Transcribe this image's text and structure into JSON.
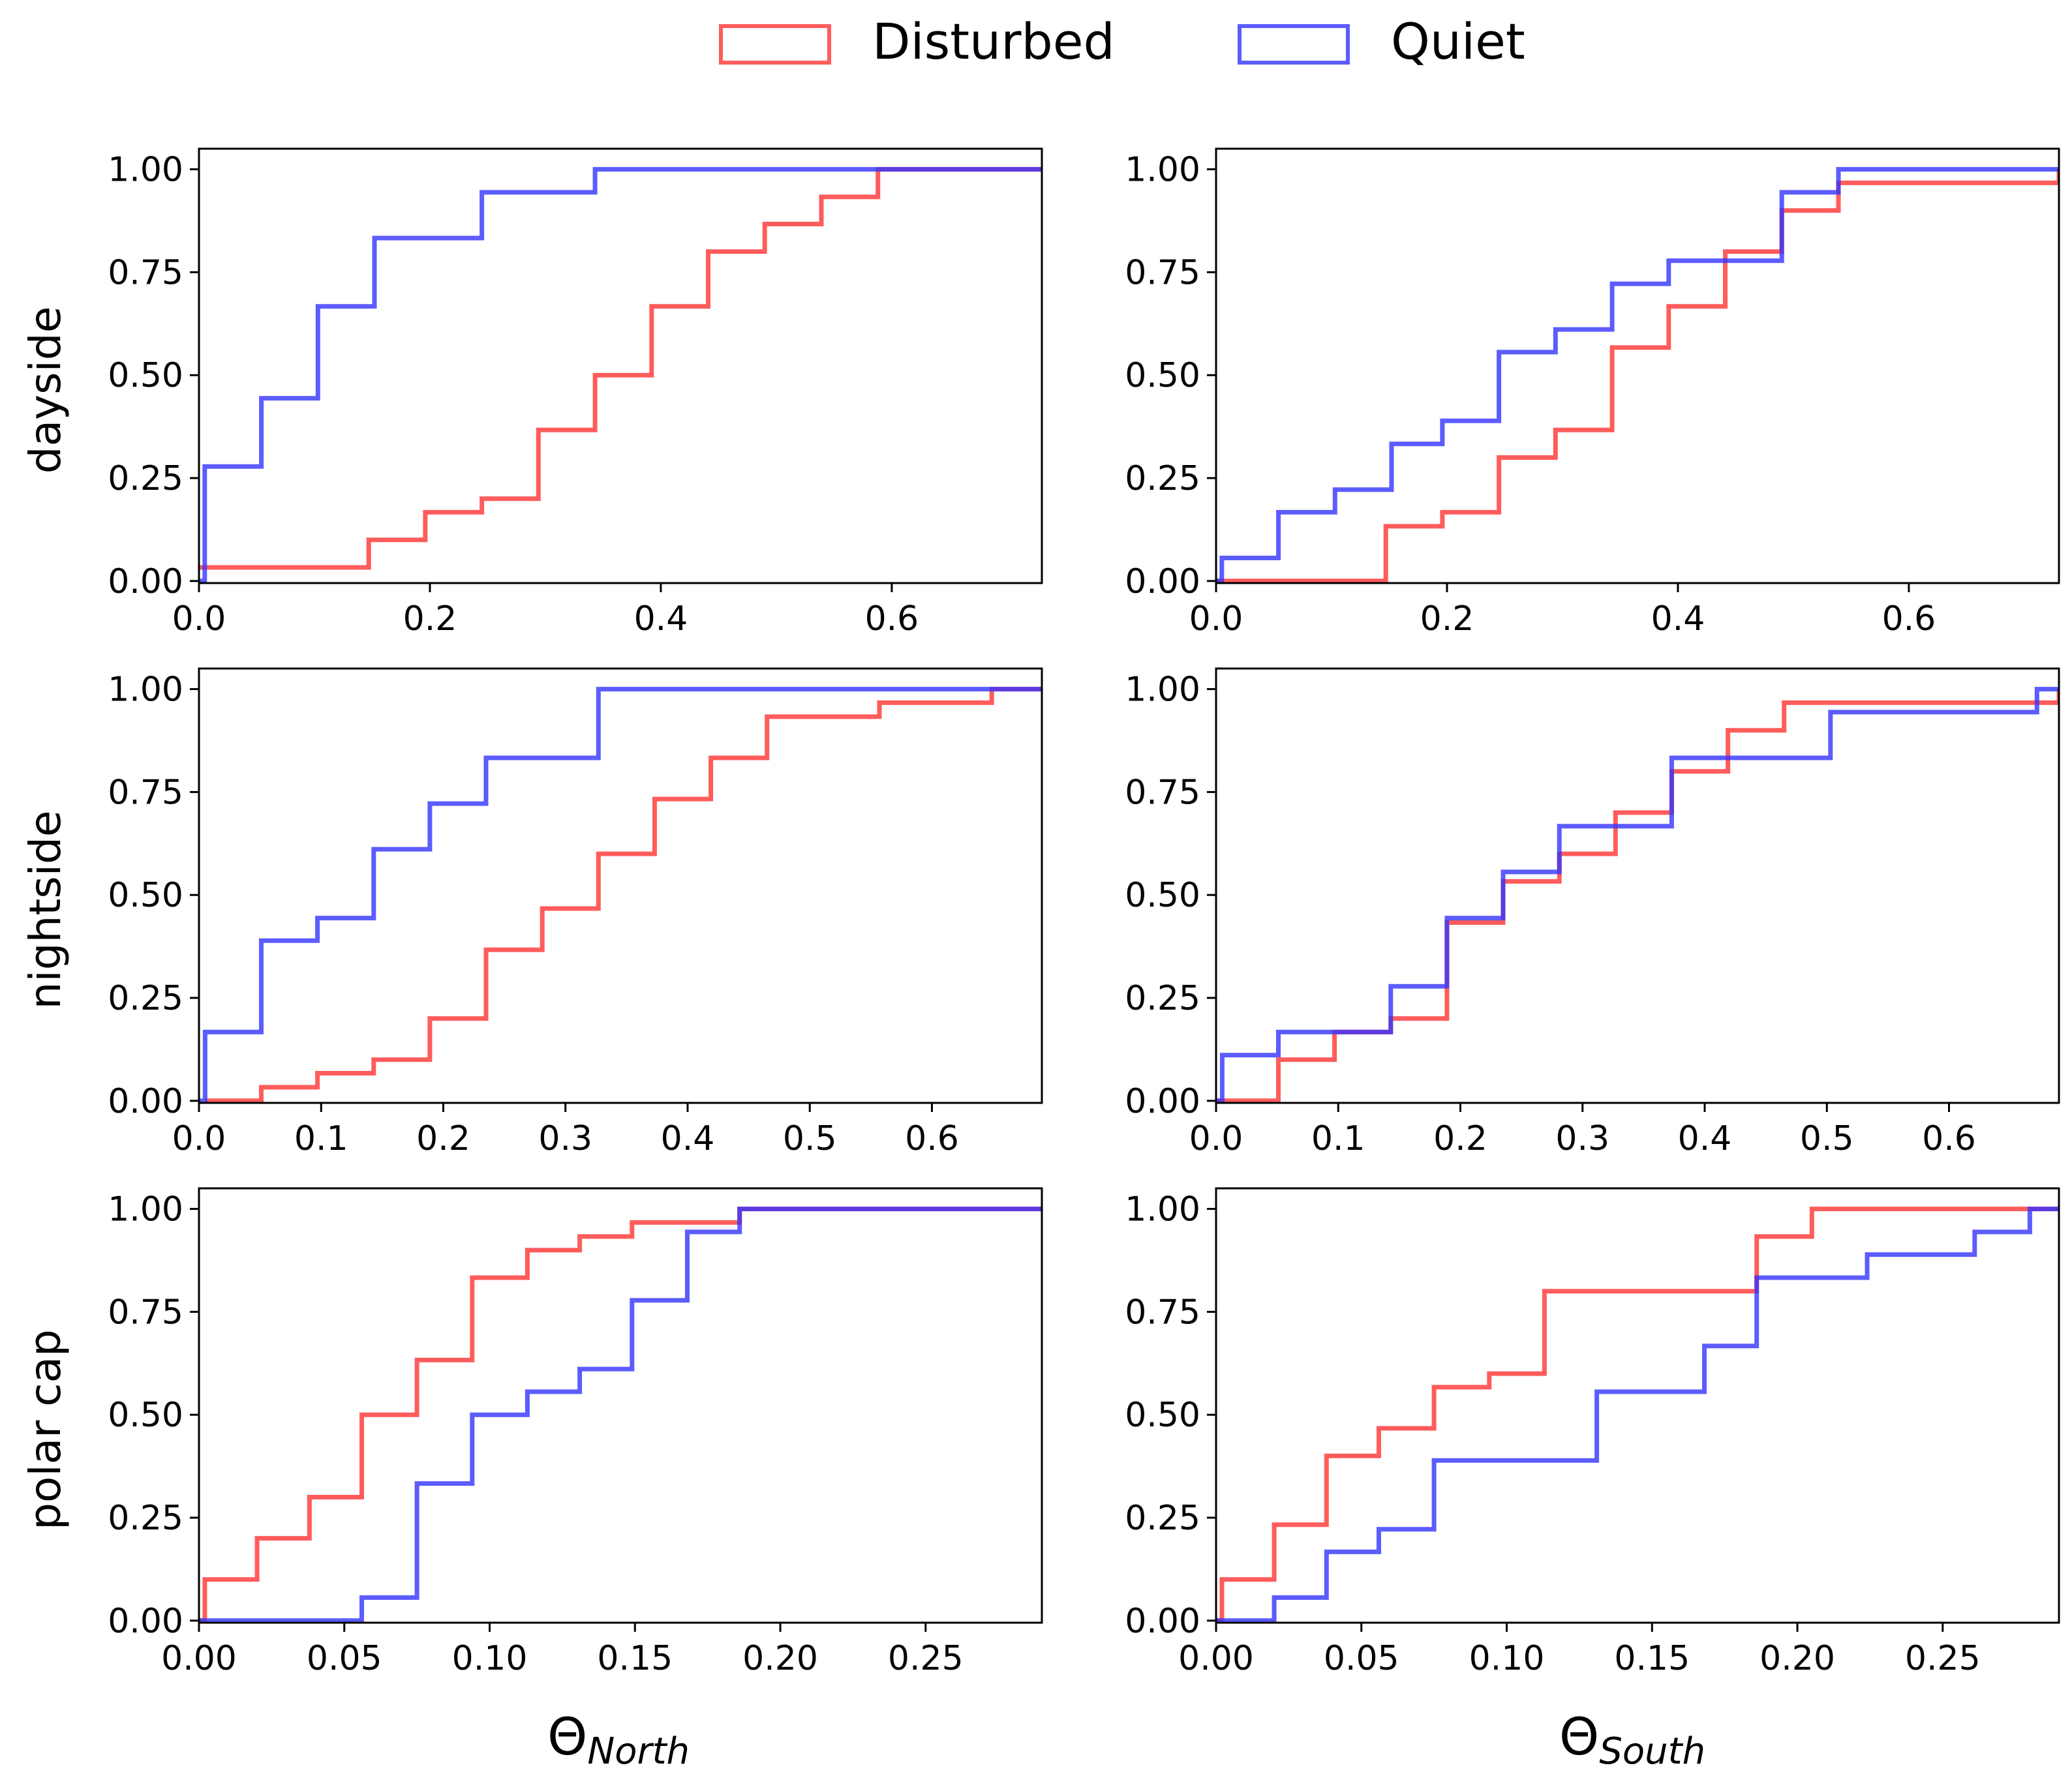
{
  "legend": {
    "placement": "top-center",
    "entries": [
      {
        "label": "Disturbed",
        "color": "#ff3333"
      },
      {
        "label": "Quiet",
        "color": "#3333ff"
      }
    ]
  },
  "row_labels": [
    "dayside",
    "nightside",
    "polar cap"
  ],
  "col_labels": {
    "north_base": "Θ",
    "north_sub": "North",
    "south_base": "Θ",
    "south_sub": "South"
  },
  "chart_data": [
    {
      "type": "line",
      "step": "post",
      "row": 0,
      "col": 0,
      "ylabel": "dayside",
      "xlabel": "",
      "xlim": [
        0,
        0.73
      ],
      "ylim": [
        -0.005,
        1.05
      ],
      "xticks": [
        0.0,
        0.2,
        0.4,
        0.6
      ],
      "xtick_labels": [
        "0.0",
        "0.2",
        "0.4",
        "0.6"
      ],
      "yticks": [
        0,
        0.25,
        0.5,
        0.75,
        1.0
      ],
      "ytick_labels": [
        "0.00",
        "0.25",
        "0.50",
        "0.75",
        "1.00"
      ],
      "series": [
        {
          "name": "Disturbed",
          "x": [
            0.0,
            0.147,
            0.196,
            0.245,
            0.294,
            0.343,
            0.392,
            0.441,
            0.49,
            0.539,
            0.588,
            0.73
          ],
          "y": [
            0.033,
            0.1,
            0.167,
            0.2,
            0.367,
            0.5,
            0.667,
            0.8,
            0.867,
            0.933,
            1.0,
            1.0
          ]
        },
        {
          "name": "Quiet",
          "x": [
            0.0,
            0.005,
            0.054,
            0.103,
            0.152,
            0.245,
            0.343,
            0.73
          ],
          "y": [
            0.0,
            0.278,
            0.444,
            0.667,
            0.833,
            0.944,
            1.0,
            1.0
          ]
        }
      ]
    },
    {
      "type": "line",
      "step": "post",
      "row": 0,
      "col": 1,
      "ylabel": "",
      "xlabel": "",
      "xlim": [
        0,
        0.73
      ],
      "ylim": [
        -0.005,
        1.05
      ],
      "xticks": [
        0.0,
        0.2,
        0.4,
        0.6
      ],
      "xtick_labels": [
        "0.0",
        "0.2",
        "0.4",
        "0.6"
      ],
      "yticks": [
        0,
        0.25,
        0.5,
        0.75,
        1.0
      ],
      "ytick_labels": [
        "0.00",
        "0.25",
        "0.50",
        "0.75",
        "1.00"
      ],
      "series": [
        {
          "name": "Disturbed",
          "x": [
            0.0,
            0.147,
            0.196,
            0.245,
            0.294,
            0.343,
            0.392,
            0.441,
            0.49,
            0.539,
            0.73
          ],
          "y": [
            0.0,
            0.133,
            0.167,
            0.3,
            0.367,
            0.567,
            0.667,
            0.8,
            0.9,
            0.967,
            1.0
          ]
        },
        {
          "name": "Quiet",
          "x": [
            0.0,
            0.005,
            0.054,
            0.103,
            0.152,
            0.196,
            0.245,
            0.294,
            0.343,
            0.392,
            0.49,
            0.539,
            0.73
          ],
          "y": [
            0.0,
            0.056,
            0.167,
            0.222,
            0.333,
            0.389,
            0.556,
            0.611,
            0.722,
            0.778,
            0.944,
            1.0,
            1.0
          ]
        }
      ]
    },
    {
      "type": "line",
      "step": "post",
      "row": 1,
      "col": 0,
      "ylabel": "nightside",
      "xlabel": "",
      "xlim": [
        0,
        0.69
      ],
      "ylim": [
        -0.005,
        1.05
      ],
      "xticks": [
        0.0,
        0.1,
        0.2,
        0.3,
        0.4,
        0.5,
        0.6
      ],
      "xtick_labels": [
        "0.0",
        "0.1",
        "0.2",
        "0.3",
        "0.4",
        "0.5",
        "0.6"
      ],
      "yticks": [
        0,
        0.25,
        0.5,
        0.75,
        1.0
      ],
      "ytick_labels": [
        "0.00",
        "0.25",
        "0.50",
        "0.75",
        "1.00"
      ],
      "series": [
        {
          "name": "Disturbed",
          "x": [
            0.005,
            0.051,
            0.097,
            0.143,
            0.189,
            0.235,
            0.281,
            0.327,
            0.373,
            0.419,
            0.465,
            0.557,
            0.649,
            0.69
          ],
          "y": [
            0.0,
            0.033,
            0.067,
            0.1,
            0.2,
            0.367,
            0.467,
            0.6,
            0.733,
            0.833,
            0.933,
            0.967,
            1.0,
            1.0
          ]
        },
        {
          "name": "Quiet",
          "x": [
            0.0,
            0.005,
            0.051,
            0.097,
            0.143,
            0.189,
            0.235,
            0.327,
            0.69
          ],
          "y": [
            0.0,
            0.167,
            0.389,
            0.444,
            0.611,
            0.722,
            0.833,
            1.0,
            1.0
          ]
        }
      ]
    },
    {
      "type": "line",
      "step": "post",
      "row": 1,
      "col": 1,
      "ylabel": "",
      "xlabel": "",
      "xlim": [
        0,
        0.69
      ],
      "ylim": [
        -0.005,
        1.05
      ],
      "xticks": [
        0.0,
        0.1,
        0.2,
        0.3,
        0.4,
        0.5,
        0.6
      ],
      "xtick_labels": [
        "0.0",
        "0.1",
        "0.2",
        "0.3",
        "0.4",
        "0.5",
        "0.6"
      ],
      "yticks": [
        0,
        0.25,
        0.5,
        0.75,
        1.0
      ],
      "ytick_labels": [
        "0.00",
        "0.25",
        "0.50",
        "0.75",
        "1.00"
      ],
      "series": [
        {
          "name": "Disturbed",
          "x": [
            0.0,
            0.051,
            0.097,
            0.143,
            0.189,
            0.235,
            0.281,
            0.327,
            0.373,
            0.419,
            0.465,
            0.69
          ],
          "y": [
            0.0,
            0.1,
            0.167,
            0.2,
            0.433,
            0.533,
            0.6,
            0.7,
            0.8,
            0.9,
            0.967,
            1.0
          ]
        },
        {
          "name": "Quiet",
          "x": [
            0.0,
            0.005,
            0.051,
            0.143,
            0.189,
            0.235,
            0.281,
            0.373,
            0.503,
            0.672,
            0.69
          ],
          "y": [
            0.0,
            0.111,
            0.167,
            0.278,
            0.444,
            0.556,
            0.667,
            0.833,
            0.944,
            1.0,
            1.0
          ]
        }
      ]
    },
    {
      "type": "line",
      "step": "post",
      "row": 2,
      "col": 0,
      "ylabel": "polar cap",
      "xlabel": "Θ North",
      "xlim": [
        0,
        0.29
      ],
      "ylim": [
        -0.005,
        1.05
      ],
      "xticks": [
        0.0,
        0.05,
        0.1,
        0.15,
        0.2,
        0.25
      ],
      "xtick_labels": [
        "0.00",
        "0.05",
        "0.10",
        "0.15",
        "0.20",
        "0.25"
      ],
      "yticks": [
        0,
        0.25,
        0.5,
        0.75,
        1.0
      ],
      "ytick_labels": [
        "0.00",
        "0.25",
        "0.50",
        "0.75",
        "1.00"
      ],
      "series": [
        {
          "name": "Disturbed",
          "x": [
            0.0,
            0.002,
            0.02,
            0.038,
            0.056,
            0.075,
            0.094,
            0.113,
            0.131,
            0.149,
            0.168,
            0.186,
            0.29
          ],
          "y": [
            0.0,
            0.1,
            0.2,
            0.3,
            0.5,
            0.633,
            0.833,
            0.9,
            0.933,
            0.967,
            0.967,
            1.0,
            1.0
          ]
        },
        {
          "name": "Quiet",
          "x": [
            0.0,
            0.056,
            0.075,
            0.094,
            0.113,
            0.131,
            0.149,
            0.168,
            0.186,
            0.29
          ],
          "y": [
            0.0,
            0.056,
            0.333,
            0.5,
            0.556,
            0.611,
            0.778,
            0.944,
            1.0,
            1.0
          ]
        }
      ]
    },
    {
      "type": "line",
      "step": "post",
      "row": 2,
      "col": 1,
      "ylabel": "",
      "xlabel": "Θ South",
      "xlim": [
        0,
        0.29
      ],
      "ylim": [
        -0.005,
        1.05
      ],
      "xticks": [
        0.0,
        0.05,
        0.1,
        0.15,
        0.2,
        0.25
      ],
      "xtick_labels": [
        "0.00",
        "0.05",
        "0.10",
        "0.15",
        "0.20",
        "0.25"
      ],
      "yticks": [
        0,
        0.25,
        0.5,
        0.75,
        1.0
      ],
      "ytick_labels": [
        "0.00",
        "0.25",
        "0.50",
        "0.75",
        "1.00"
      ],
      "series": [
        {
          "name": "Disturbed",
          "x": [
            0.0,
            0.002,
            0.02,
            0.038,
            0.056,
            0.075,
            0.094,
            0.113,
            0.186,
            0.205,
            0.29
          ],
          "y": [
            0.0,
            0.1,
            0.233,
            0.4,
            0.467,
            0.567,
            0.6,
            0.8,
            0.933,
            1.0,
            1.0
          ]
        },
        {
          "name": "Quiet",
          "x": [
            0.0,
            0.02,
            0.038,
            0.056,
            0.075,
            0.131,
            0.168,
            0.186,
            0.224,
            0.261,
            0.28,
            0.29
          ],
          "y": [
            0.0,
            0.056,
            0.167,
            0.222,
            0.389,
            0.556,
            0.667,
            0.833,
            0.889,
            0.944,
            1.0,
            1.0
          ]
        }
      ]
    }
  ]
}
